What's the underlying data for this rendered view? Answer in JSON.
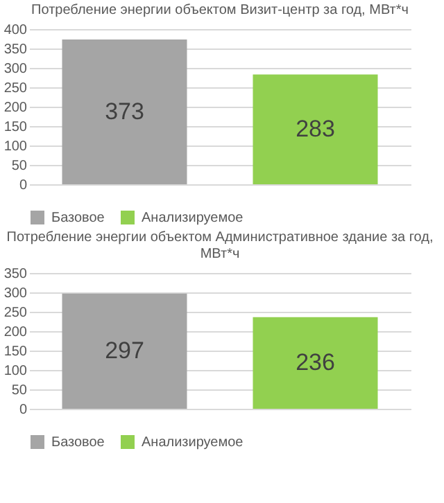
{
  "chart_data": [
    {
      "type": "bar",
      "title": "Потребление энергии объектом Визит-центр за год, МВт*ч",
      "categories": [
        null
      ],
      "series": [
        {
          "name": "Базовое",
          "color": "#a5a5a5",
          "values": [
            373
          ]
        },
        {
          "name": "Анализируемое",
          "color": "#92d050",
          "values": [
            283
          ]
        }
      ],
      "ylim": [
        0,
        400
      ],
      "yticks": [
        0,
        50,
        100,
        150,
        200,
        250,
        300,
        350,
        400
      ],
      "grid": "y",
      "legend": "bottom",
      "data_labels": true
    },
    {
      "type": "bar",
      "title": "Потребление энергии объектом Административное здание за год, МВт*ч",
      "categories": [
        null
      ],
      "series": [
        {
          "name": "Базовое",
          "color": "#a5a5a5",
          "values": [
            297
          ]
        },
        {
          "name": "Анализируемое",
          "color": "#92d050",
          "values": [
            236
          ]
        }
      ],
      "ylim": [
        0,
        350
      ],
      "yticks": [
        0,
        50,
        100,
        150,
        200,
        250,
        300,
        350
      ],
      "grid": "y",
      "legend": "bottom",
      "data_labels": true
    }
  ]
}
